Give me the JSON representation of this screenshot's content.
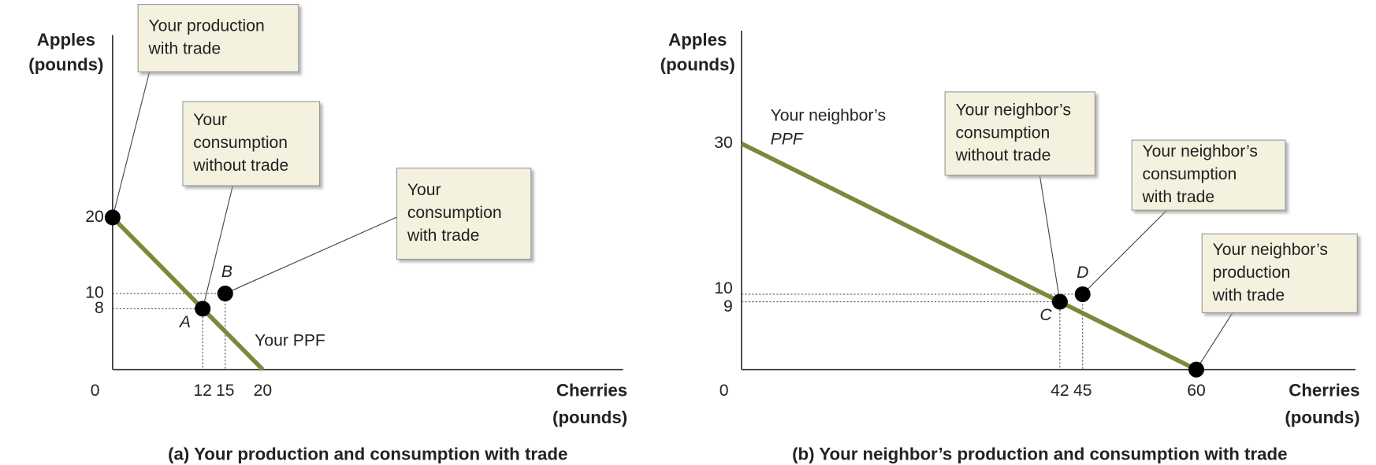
{
  "chart_data": [
    {
      "type": "line",
      "title": "(a) Your production and consumption with trade",
      "x_label": [
        "Cherries",
        "(pounds)"
      ],
      "y_label": [
        "Apples",
        "(pounds)"
      ],
      "xlim": [
        0,
        68
      ],
      "ylim": [
        0,
        44
      ],
      "xticks": [
        0,
        12,
        15,
        20
      ],
      "yticks": [
        8,
        10,
        20
      ],
      "grid": false,
      "series": [
        {
          "name": [
            "Your PPF"
          ],
          "color": "#7a8a3a",
          "x": [
            0,
            20
          ],
          "values": [
            20,
            0
          ]
        }
      ],
      "points": [
        {
          "x": 0,
          "y": 20
        },
        {
          "label": "A",
          "x": 12,
          "y": 8
        },
        {
          "label": "B",
          "x": 15,
          "y": 10
        }
      ],
      "callouts": [
        {
          "lines": [
            "Your production",
            "with trade"
          ]
        },
        {
          "lines": [
            "Your",
            "consumption",
            "without trade"
          ]
        },
        {
          "lines": [
            "Your",
            "consumption",
            "with trade"
          ]
        }
      ]
    },
    {
      "type": "line",
      "title": "(b) Your neighbor’s production and consumption with trade",
      "x_label": [
        "Cherries",
        "(pounds)"
      ],
      "y_label": [
        "Apples",
        "(pounds)"
      ],
      "xlim": [
        0,
        81
      ],
      "ylim": [
        0,
        45
      ],
      "xticks": [
        0,
        42,
        45,
        60
      ],
      "yticks": [
        9,
        10,
        30
      ],
      "grid": false,
      "series": [
        {
          "name": [
            "Your neighbor’s",
            "PPF"
          ],
          "color": "#7a8a3a",
          "x": [
            0,
            60
          ],
          "values": [
            30,
            0
          ]
        }
      ],
      "points": [
        {
          "label": "C",
          "x": 42,
          "y": 9
        },
        {
          "label": "D",
          "x": 45,
          "y": 10
        },
        {
          "x": 60,
          "y": 0
        }
      ],
      "callouts": [
        {
          "lines": [
            "Your neighbor’s",
            "consumption",
            "without trade"
          ]
        },
        {
          "lines": [
            "Your neighbor’s",
            "consumption",
            "with trade"
          ]
        },
        {
          "lines": [
            "Your neighbor’s",
            "production",
            "with trade"
          ]
        }
      ]
    }
  ]
}
